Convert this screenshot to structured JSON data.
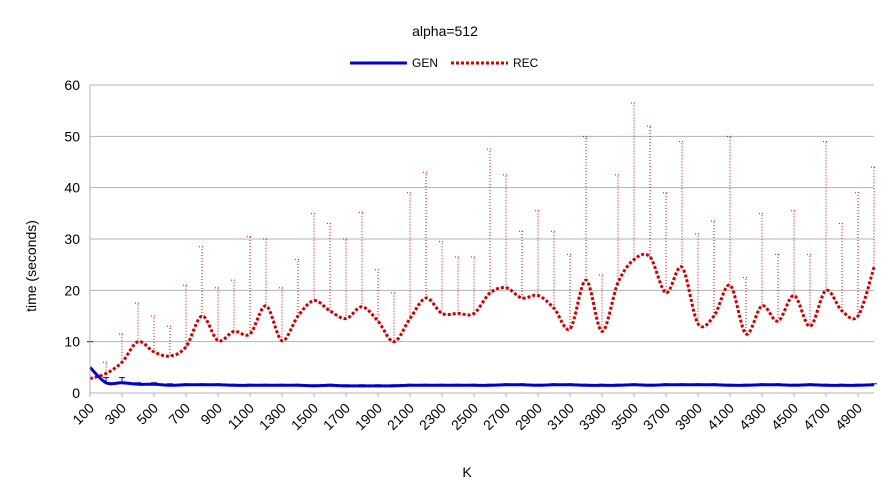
{
  "chart_data": {
    "type": "line",
    "title": "alpha=512",
    "xlabel": "K",
    "ylabel": "time (seconds)",
    "ylim": [
      0,
      60
    ],
    "yticks": [
      0,
      10,
      20,
      30,
      40,
      50,
      60
    ],
    "xlim": [
      100,
      5000
    ],
    "xtick_labels": [
      "100",
      "300",
      "500",
      "700",
      "900",
      "1100",
      "1300",
      "1500",
      "1700",
      "1900",
      "2100",
      "2300",
      "2500",
      "2700",
      "2900",
      "3100",
      "3300",
      "3500",
      "3700",
      "3900",
      "4100",
      "4300",
      "4500",
      "4700",
      "4900"
    ],
    "grid": true,
    "legend_position": "top-center",
    "x": [
      100,
      200,
      300,
      400,
      500,
      600,
      700,
      800,
      900,
      1000,
      1100,
      1200,
      1300,
      1400,
      1500,
      1600,
      1700,
      1800,
      1900,
      2000,
      2100,
      2200,
      2300,
      2400,
      2500,
      2600,
      2700,
      2800,
      2900,
      3000,
      3100,
      3200,
      3300,
      3400,
      3500,
      3600,
      3700,
      3800,
      3900,
      4000,
      4100,
      4200,
      4300,
      4400,
      4500,
      4600,
      4700,
      4800,
      4900,
      5000
    ],
    "series": [
      {
        "name": "GEN",
        "color": "#0000d0",
        "style": "solid",
        "values": [
          5.0,
          2.0,
          2.0,
          1.7,
          1.7,
          1.5,
          1.6,
          1.6,
          1.6,
          1.5,
          1.5,
          1.5,
          1.5,
          1.5,
          1.4,
          1.5,
          1.4,
          1.4,
          1.4,
          1.4,
          1.5,
          1.5,
          1.5,
          1.5,
          1.5,
          1.5,
          1.6,
          1.6,
          1.5,
          1.6,
          1.6,
          1.5,
          1.5,
          1.5,
          1.6,
          1.5,
          1.6,
          1.6,
          1.6,
          1.6,
          1.5,
          1.5,
          1.6,
          1.6,
          1.5,
          1.6,
          1.5,
          1.5,
          1.5,
          1.6
        ],
        "error_upper": [
          10.0,
          3.0,
          3.0,
          2.0,
          2.0,
          1.8,
          1.8,
          1.8,
          1.8,
          1.7,
          1.7,
          1.7,
          1.7,
          1.7,
          1.6,
          1.7,
          1.6,
          1.6,
          1.6,
          1.6,
          1.7,
          1.7,
          1.7,
          1.7,
          1.7,
          1.7,
          1.8,
          1.8,
          1.7,
          1.8,
          1.8,
          1.7,
          1.7,
          1.7,
          1.8,
          1.7,
          1.8,
          1.8,
          1.8,
          1.8,
          1.7,
          1.7,
          1.8,
          1.8,
          1.7,
          1.8,
          1.7,
          1.7,
          1.7,
          1.8
        ]
      },
      {
        "name": "REC",
        "color": "#d00000",
        "style": "dotted",
        "values": [
          2.8,
          3.8,
          6.0,
          10.0,
          8.0,
          7.2,
          9.0,
          15.0,
          10.2,
          12.0,
          11.5,
          17.0,
          10.2,
          15.0,
          18.0,
          16.0,
          14.5,
          16.8,
          14.0,
          10.0,
          14.5,
          18.5,
          15.5,
          15.5,
          15.5,
          19.5,
          20.5,
          18.5,
          19.0,
          16.5,
          12.5,
          22.0,
          12.0,
          21.5,
          26.0,
          26.5,
          19.5,
          24.5,
          13.5,
          15.0,
          21.0,
          11.5,
          17.0,
          14.0,
          19.0,
          13.0,
          20.0,
          16.0,
          15.0,
          24.5
        ],
        "error_upper": [
          2.8,
          6.0,
          11.5,
          17.5,
          15.0,
          13.0,
          21.0,
          28.5,
          20.5,
          22.0,
          30.5,
          30.0,
          20.5,
          26.0,
          35.0,
          33.0,
          30.0,
          35.2,
          24.0,
          19.5,
          39.0,
          43.0,
          29.5,
          26.5,
          26.5,
          47.5,
          42.5,
          31.5,
          35.5,
          31.5,
          27.0,
          50.0,
          23.0,
          42.5,
          56.5,
          52.0,
          39.0,
          49.0,
          31.0,
          33.5,
          50.0,
          22.5,
          35.0,
          27.0,
          35.5,
          27.0,
          49.0,
          33.0,
          39.0,
          44.0
        ]
      }
    ]
  }
}
